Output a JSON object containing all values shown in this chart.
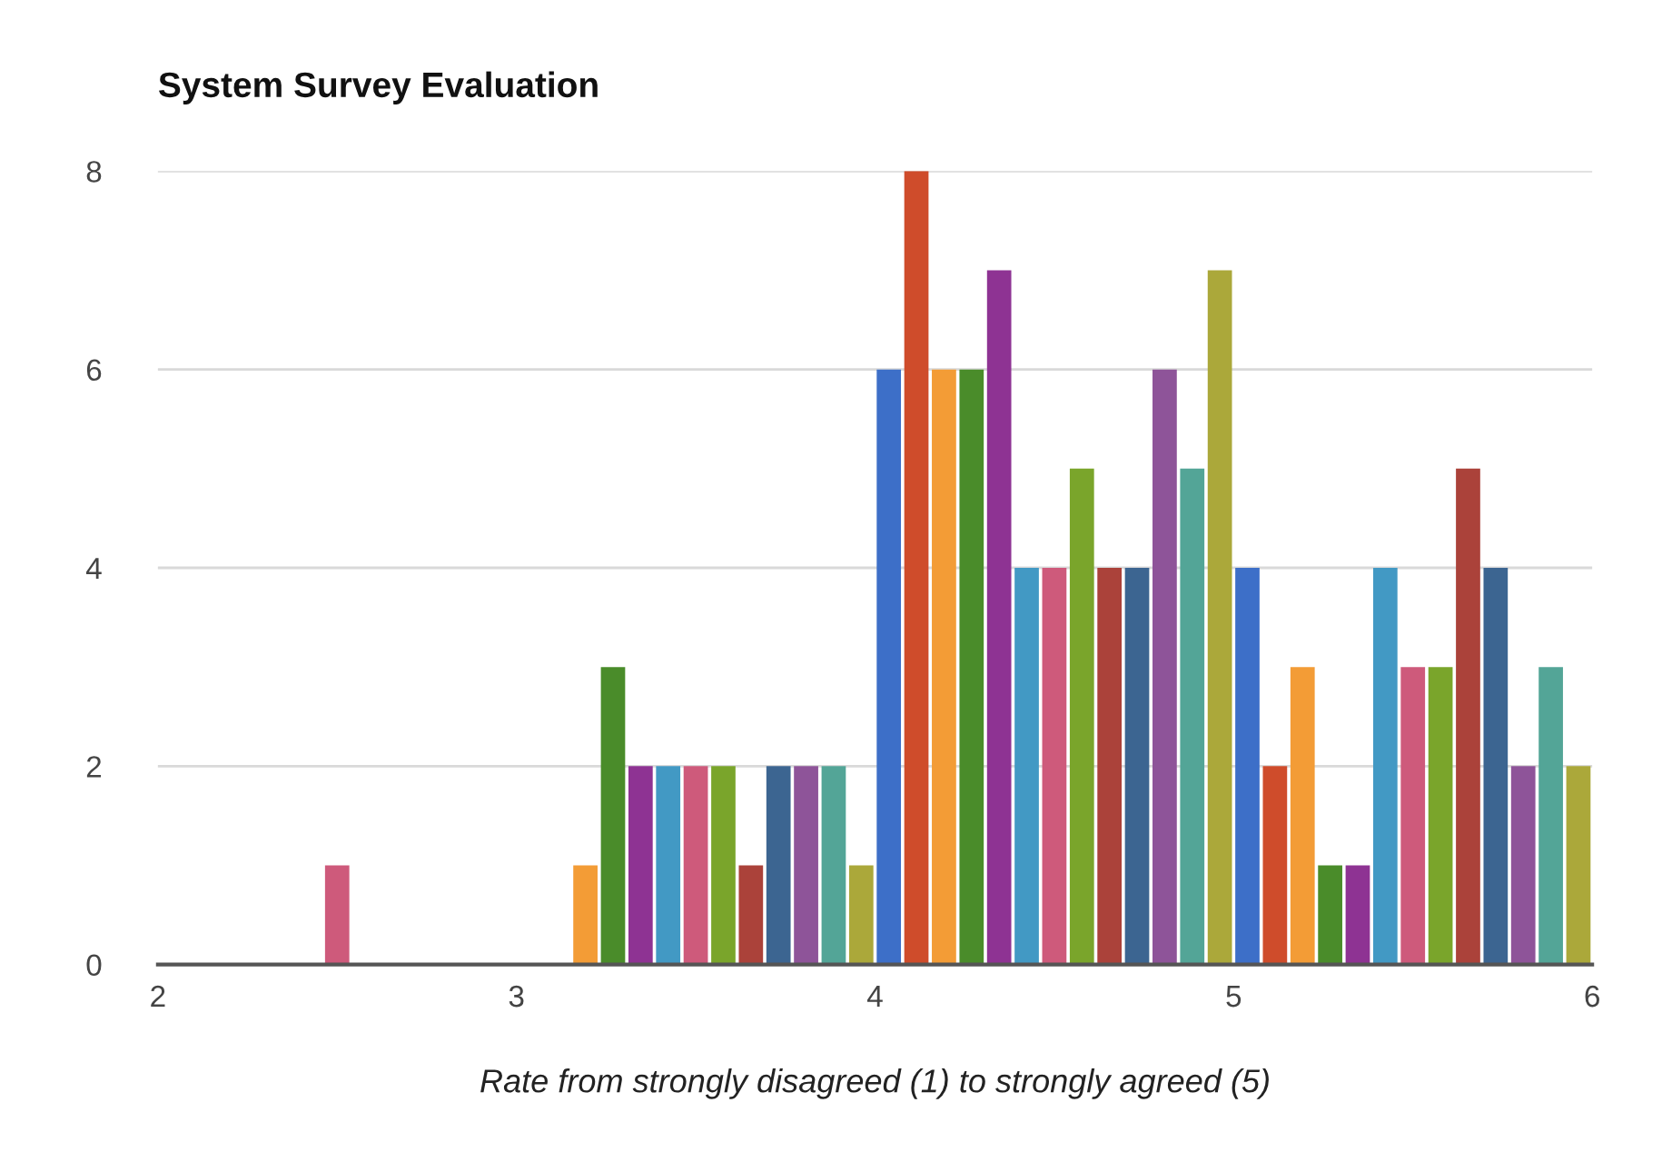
{
  "chart_data": {
    "type": "histogram",
    "title": "System Survey Evaluation",
    "xlabel": "Rate from strongly disagreed (1) to strongly agreed (5)",
    "bins": [
      2,
      2.0769,
      2.1538,
      2.2308,
      2.3077,
      2.3846,
      2.4615,
      2.5385,
      2.6154,
      2.6923,
      2.7692,
      2.8462,
      2.9231,
      3,
      3.0769,
      3.1538,
      3.2308,
      3.3077,
      3.3846,
      3.4615,
      3.5385,
      3.6154,
      3.6923,
      3.7692,
      3.8462,
      3.9231,
      4,
      4.0769,
      4.1538,
      4.2308,
      4.3077,
      4.3846,
      4.4615,
      4.5385,
      4.6154,
      4.6923,
      4.7692,
      4.8462,
      4.9231,
      5,
      5.0769,
      5.1538,
      5.2308,
      5.3077,
      5.3846,
      5.4615,
      5.5385,
      5.6154,
      5.6923,
      5.7692,
      5.8462,
      5.9231,
      6
    ],
    "values": [
      0,
      0,
      0,
      0,
      0,
      0,
      1,
      0,
      0,
      0,
      0,
      0,
      0,
      0,
      0,
      1,
      3,
      2,
      2,
      2,
      2,
      1,
      2,
      2,
      2,
      1,
      6,
      8,
      6,
      6,
      7,
      4,
      4,
      5,
      4,
      4,
      6,
      5,
      7,
      4,
      2,
      3,
      1,
      1,
      4,
      3,
      3,
      5,
      4,
      2,
      3,
      2
    ],
    "colors": [
      "#3d6fc8",
      "#cf4c2b",
      "#f39c36",
      "#4a8c2a",
      "#8e3393",
      "#4299c4",
      "#ce5a7b",
      "#7aa52b",
      "#ab423a",
      "#3c6591",
      "#8e5499",
      "#53a597",
      "#aba83a",
      "#3d6fc8",
      "#cf4c2b",
      "#f39c36",
      "#4a8c2a",
      "#8e3393",
      "#4299c4",
      "#ce5a7b",
      "#7aa52b",
      "#ab423a",
      "#3c6591",
      "#8e5499",
      "#53a597",
      "#aba83a",
      "#3d6fc8",
      "#cf4c2b",
      "#f39c36",
      "#4a8c2a",
      "#8e3393",
      "#4299c4",
      "#ce5a7b",
      "#7aa52b",
      "#ab423a",
      "#3c6591",
      "#8e5499",
      "#53a597",
      "#aba83a",
      "#3d6fc8",
      "#cf4c2b",
      "#f39c36",
      "#4a8c2a",
      "#8e3393",
      "#4299c4",
      "#ce5a7b",
      "#7aa52b",
      "#ab423a",
      "#3c6591",
      "#8e5499",
      "#53a597",
      "#aba83a"
    ],
    "xlim": [
      2,
      6
    ],
    "xticks": [
      2,
      3,
      4,
      5,
      6
    ],
    "ylim": [
      0,
      8
    ],
    "yticks": [
      0,
      2,
      4,
      6,
      8
    ],
    "grid": "y"
  }
}
